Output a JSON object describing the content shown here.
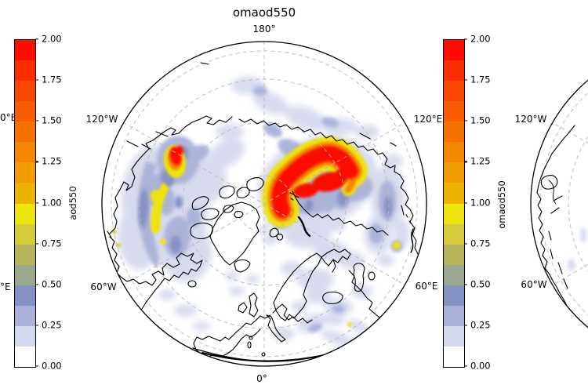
{
  "title": "omaod550",
  "colormap": {
    "levels": [
      0,
      0.125,
      0.25,
      0.375,
      0.5,
      0.625,
      0.75,
      0.875,
      1,
      1.125,
      1.25,
      1.375,
      1.5,
      1.625,
      1.75,
      1.875,
      2
    ],
    "colors": [
      "#ffffff",
      "#d4d8ec",
      "#a9b1d9",
      "#8592c4",
      "#9ca88e",
      "#b5b45a",
      "#d4cb3d",
      "#efe30e",
      "#ecb400",
      "#f19c00",
      "#f48700",
      "#f67200",
      "#f75d00",
      "#f94701",
      "#fa2e00",
      "#fc0d00"
    ]
  },
  "colorbars": {
    "left": {
      "label": "aod550",
      "ticks": [
        "2.00",
        "1.75",
        "1.50",
        "1.25",
        "1.00",
        "0.75",
        "0.50",
        "0.25",
        "0.00"
      ]
    },
    "right": {
      "label": "omaod550",
      "ticks": [
        "2.00",
        "1.75",
        "1.50",
        "1.25",
        "1.00",
        "0.75",
        "0.50",
        "0.25",
        "0.00"
      ]
    }
  },
  "maps": {
    "left_partial": {
      "label_upper": "0°E",
      "label_lower": "°E"
    },
    "center": {
      "top": "180°",
      "upper_left": "120°W",
      "upper_right": "120°E",
      "lower_left": "60°W",
      "lower_right": "60°E",
      "bottom": "0°"
    },
    "right_partial": {
      "upper_left": "120°W",
      "lower_left": "60°W"
    }
  },
  "chart_data": {
    "type": "heatmap",
    "title": "omaod550",
    "projection": "north polar orthographic",
    "variable_center_panel": "omaod550",
    "variable_left_panel": "aod550",
    "value_range": [
      0,
      2
    ],
    "contour_level_step": 0.125,
    "colorbar_tick_step": 0.25,
    "levels": [
      0,
      0.125,
      0.25,
      0.375,
      0.5,
      0.625,
      0.75,
      0.875,
      1,
      1.125,
      1.25,
      1.375,
      1.5,
      1.625,
      1.75,
      1.875,
      2
    ],
    "colormap_colors": [
      "#ffffff",
      "#d4d8ec",
      "#a9b1d9",
      "#8592c4",
      "#9ca88e",
      "#b5b45a",
      "#d4cb3d",
      "#efe30e",
      "#ecb400",
      "#f19c00",
      "#f48700",
      "#f67200",
      "#f75d00",
      "#f94701",
      "#fa2e00",
      "#fc0d00"
    ],
    "graticule": {
      "latitude_circles_deg": [
        20,
        40,
        60,
        80
      ],
      "meridian_spacing_deg": 60,
      "style": "dashed gray"
    },
    "meridian_labels": [
      "180°",
      "120°W",
      "120°E",
      "60°W",
      "60°E",
      "0°"
    ],
    "features": [
      {
        "region": "eastern Siberia, right of pole",
        "description": "large comma-shaped wildfire smoke plume with tail curling toward the pole",
        "peak_value": 2.0,
        "halo_values": [
          0.25,
          1.0
        ]
      },
      {
        "region": "Alaska / Yukon",
        "description": "compact intense smoke plume",
        "peak_value": 2.0
      },
      {
        "region": "Gulf of Alaska / North Pacific",
        "description": "curved outflow band of moderate aerosol",
        "values": [
          0.25,
          1.0
        ]
      },
      {
        "region": "central Arctic Ocean",
        "description": "scattered thin haze patches",
        "values": [
          0.1,
          0.5
        ]
      },
      {
        "region": "Europe / western Russia",
        "description": "scattered thin haze patches",
        "values": [
          0.1,
          0.4
        ]
      },
      {
        "region": "Kamchatka coast",
        "description": "small isolated spot",
        "values": [
          0.75,
          1.0
        ]
      },
      {
        "region": "right partial panel (North America west coast)",
        "description": "mostly clear, faint coastal haze",
        "values": [
          0.0,
          0.25
        ]
      }
    ]
  }
}
